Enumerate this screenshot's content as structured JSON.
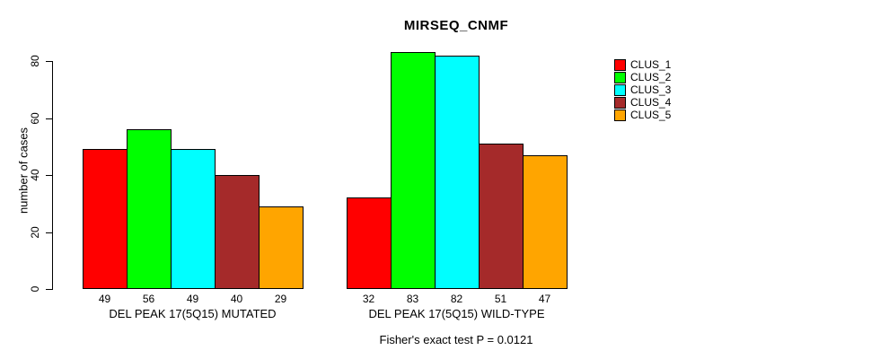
{
  "chart_data": {
    "type": "bar",
    "title": "MIRSEQ_CNMF",
    "ylabel": "number of cases",
    "ylim": [
      0,
      80
    ],
    "yticks": [
      0,
      20,
      40,
      60,
      80
    ],
    "grid": false,
    "legend_position": "right",
    "bar_value_labels": true,
    "categories": [
      "DEL PEAK 17(5Q15) MUTATED",
      "DEL PEAK 17(5Q15) WILD-TYPE"
    ],
    "series": [
      {
        "name": "CLUS_1",
        "color": "#ff0000",
        "values": [
          49,
          32
        ]
      },
      {
        "name": "CLUS_2",
        "color": "#00ff00",
        "values": [
          56,
          83
        ]
      },
      {
        "name": "CLUS_3",
        "color": "#00ffff",
        "values": [
          49,
          82
        ]
      },
      {
        "name": "CLUS_4",
        "color": "#a52a2a",
        "values": [
          40,
          51
        ]
      },
      {
        "name": "CLUS_5",
        "color": "#ffa500",
        "values": [
          29,
          47
        ]
      }
    ],
    "annotation": "Fisher's exact test P = 0.0121"
  }
}
